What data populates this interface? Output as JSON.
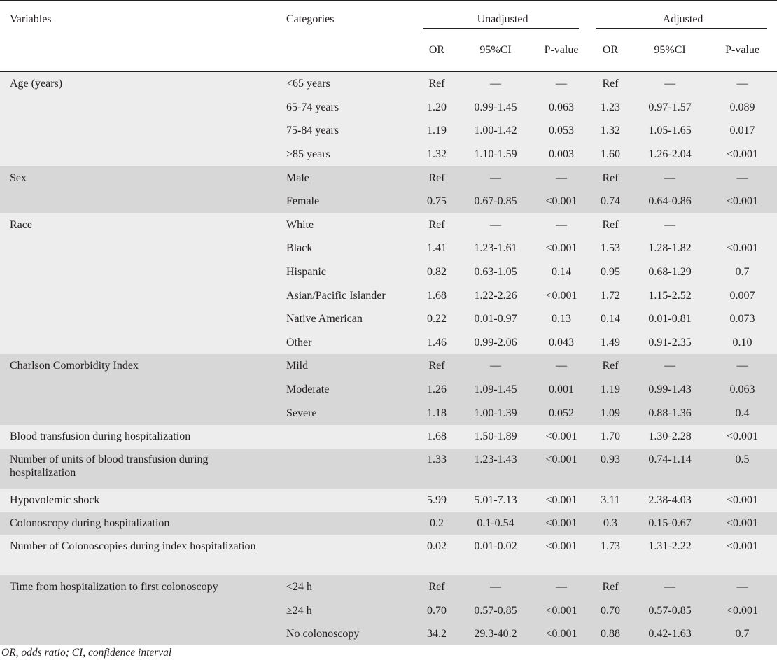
{
  "headers": {
    "variables": "Variables",
    "categories": "Categories",
    "unadjusted": "Unadjusted",
    "adjusted": "Adjusted",
    "or": "OR",
    "ci": "95%CI",
    "p": "P-value"
  },
  "rows": [
    {
      "variable": "Age (years)",
      "category": "<65 years",
      "or": "Ref",
      "ci": "—",
      "p": "—",
      "aor": "Ref",
      "aci": "—",
      "ap": "—"
    },
    {
      "variable": "",
      "category": "65-74 years",
      "or": "1.20",
      "ci": "0.99-1.45",
      "p": "0.063",
      "aor": "1.23",
      "aci": "0.97-1.57",
      "ap": "0.089"
    },
    {
      "variable": "",
      "category": "75-84 years",
      "or": "1.19",
      "ci": "1.00-1.42",
      "p": "0.053",
      "aor": "1.32",
      "aci": "1.05-1.65",
      "ap": "0.017"
    },
    {
      "variable": "",
      "category": ">85 years",
      "or": "1.32",
      "ci": "1.10-1.59",
      "p": "0.003",
      "aor": "1.60",
      "aci": "1.26-2.04",
      "ap": "<0.001"
    },
    {
      "variable": "Sex",
      "category": "Male",
      "or": "Ref",
      "ci": "—",
      "p": "—",
      "aor": "Ref",
      "aci": "—",
      "ap": "—"
    },
    {
      "variable": "",
      "category": "Female",
      "or": "0.75",
      "ci": "0.67-0.85",
      "p": "<0.001",
      "aor": "0.74",
      "aci": "0.64-0.86",
      "ap": "<0.001"
    },
    {
      "variable": "Race",
      "category": "White",
      "or": "Ref",
      "ci": "—",
      "p": "—",
      "aor": "Ref",
      "aci": "—",
      "ap": ""
    },
    {
      "variable": "",
      "category": "Black",
      "or": "1.41",
      "ci": "1.23-1.61",
      "p": "<0.001",
      "aor": "1.53",
      "aci": "1.28-1.82",
      "ap": "<0.001"
    },
    {
      "variable": "",
      "category": "Hispanic",
      "or": "0.82",
      "ci": "0.63-1.05",
      "p": "0.14",
      "aor": "0.95",
      "aci": "0.68-1.29",
      "ap": "0.7"
    },
    {
      "variable": "",
      "category": "Asian/Pacific Islander",
      "or": "1.68",
      "ci": "1.22-2.26",
      "p": "<0.001",
      "aor": "1.72",
      "aci": "1.15-2.52",
      "ap": "0.007"
    },
    {
      "variable": "",
      "category": "Native American",
      "or": "0.22",
      "ci": "0.01-0.97",
      "p": "0.13",
      "aor": "0.14",
      "aci": "0.01-0.81",
      "ap": "0.073"
    },
    {
      "variable": "",
      "category": "Other",
      "or": "1.46",
      "ci": "0.99-2.06",
      "p": "0.043",
      "aor": "1.49",
      "aci": "0.91-2.35",
      "ap": "0.10"
    },
    {
      "variable": "Charlson Comorbidity Index",
      "category": "Mild",
      "or": "Ref",
      "ci": "—",
      "p": "—",
      "aor": "Ref",
      "aci": "—",
      "ap": "—"
    },
    {
      "variable": "",
      "category": "Moderate",
      "or": "1.26",
      "ci": "1.09-1.45",
      "p": "0.001",
      "aor": "1.19",
      "aci": "0.99-1.43",
      "ap": "0.063"
    },
    {
      "variable": "",
      "category": "Severe",
      "or": "1.18",
      "ci": "1.00-1.39",
      "p": "0.052",
      "aor": "1.09",
      "aci": "0.88-1.36",
      "ap": "0.4"
    },
    {
      "variable": "Blood transfusion during hospitalization",
      "category": "",
      "or": "1.68",
      "ci": "1.50-1.89",
      "p": "<0.001",
      "aor": "1.70",
      "aci": "1.30-2.28",
      "ap": "<0.001"
    },
    {
      "variable": "Number of units of blood transfusion during hospitalization",
      "category": "",
      "or": "1.33",
      "ci": "1.23-1.43",
      "p": "<0.001",
      "aor": "0.93",
      "aci": "0.74-1.14",
      "ap": "0.5"
    },
    {
      "variable": "Hypovolemic shock",
      "category": "",
      "or": "5.99",
      "ci": "5.01-7.13",
      "p": "<0.001",
      "aor": "3.11",
      "aci": "2.38-4.03",
      "ap": "<0.001"
    },
    {
      "variable": "Colonoscopy during hospitalization",
      "category": "",
      "or": "0.2",
      "ci": "0.1-0.54",
      "p": "<0.001",
      "aor": "0.3",
      "aci": "0.15-0.67",
      "ap": "<0.001"
    },
    {
      "variable": "Number of Colonoscopies during index hospitalization",
      "category": "",
      "or": "0.02",
      "ci": "0.01-0.02",
      "p": "<0.001",
      "aor": "1.73",
      "aci": "1.31-2.22",
      "ap": "<0.001"
    },
    {
      "variable": "Time from hospitalization to first colonoscopy",
      "category": "<24 h",
      "or": "Ref",
      "ci": "—",
      "p": "—",
      "aor": "Ref",
      "aci": "—",
      "ap": "—"
    },
    {
      "variable": "",
      "category": "≥24 h",
      "or": "0.70",
      "ci": "0.57-0.85",
      "p": "<0.001",
      "aor": "0.70",
      "aci": "0.57-0.85",
      "ap": "<0.001"
    },
    {
      "variable": "",
      "category": "No colonoscopy",
      "or": "34.2",
      "ci": "29.3-40.2",
      "p": "<0.001",
      "aor": "0.88",
      "aci": "0.42-1.63",
      "ap": "0.7"
    }
  ],
  "footnote": "OR, odds ratio; CI, confidence interval"
}
